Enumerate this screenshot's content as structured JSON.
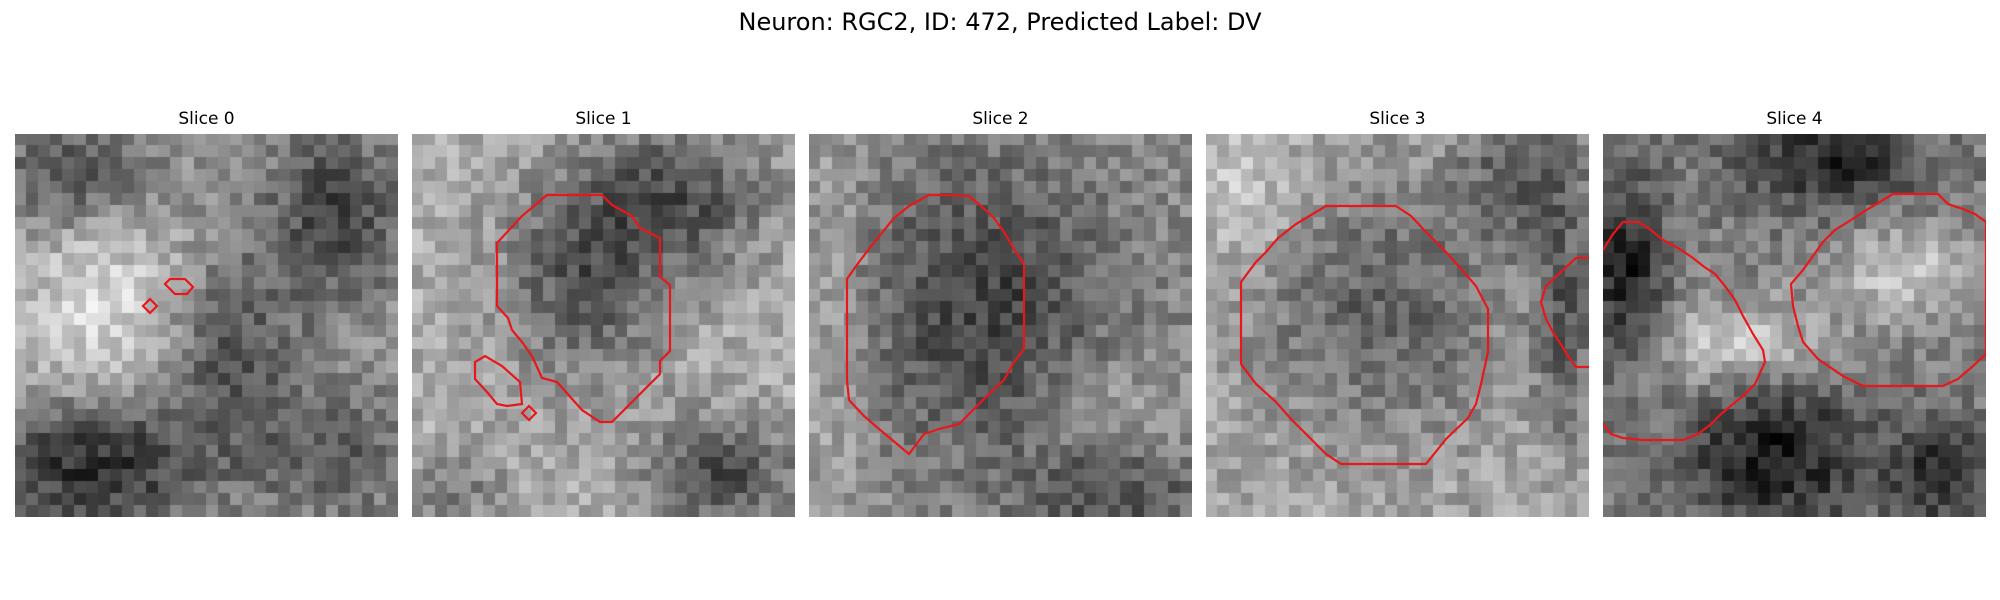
{
  "figure": {
    "title": "Neuron: RGC2, ID: 472, Predicted Label: DV"
  },
  "panels": [
    {
      "title": "Slice 0"
    },
    {
      "title": "Slice 1"
    },
    {
      "title": "Slice 2"
    },
    {
      "title": "Slice 3"
    },
    {
      "title": "Slice 4"
    }
  ],
  "colors": {
    "contour": "#e8171b",
    "background": "#ffffff"
  },
  "image_style": "grayscale pixelated microscopy slices with red segmentation contours"
}
